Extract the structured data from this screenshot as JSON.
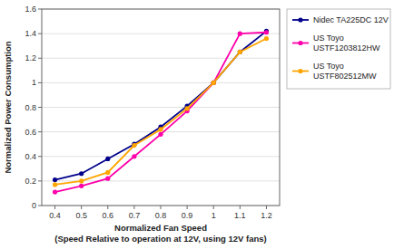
{
  "chart_data": {
    "type": "line",
    "xlabel": "Normalized Fan Speed\n(Speed Relative to operation at 12V, using 12V fans)",
    "ylabel": "Normalized Power Consumption",
    "x": [
      0.4,
      0.5,
      0.6,
      0.7,
      0.8,
      0.9,
      1.0,
      1.1,
      1.2
    ],
    "series": [
      {
        "name": "Nidec TA225DC 12V",
        "color": "#00008B",
        "marker": "circle",
        "values": [
          0.21,
          0.26,
          0.38,
          0.5,
          0.64,
          0.81,
          1.0,
          1.25,
          1.42
        ]
      },
      {
        "name": "US Toyo\nUSTF1203812HW",
        "color": "#FF00AA",
        "marker": "circle",
        "values": [
          0.11,
          0.16,
          0.22,
          0.4,
          0.58,
          0.77,
          1.0,
          1.4,
          1.41
        ]
      },
      {
        "name": "US Toyo\nUSTF802512MW",
        "color": "#FFA500",
        "marker": "circle",
        "values": [
          0.17,
          0.2,
          0.27,
          0.49,
          0.62,
          0.79,
          1.0,
          1.25,
          1.36
        ]
      }
    ],
    "xlim": [
      0.35,
      1.25
    ],
    "ylim": [
      0,
      1.6
    ],
    "xticks": [
      0.4,
      0.5,
      0.6,
      0.7,
      0.8,
      0.9,
      1,
      1.1,
      1.2
    ],
    "yticks": [
      0,
      0.2,
      0.4,
      0.6,
      0.8,
      1,
      1.2,
      1.4,
      1.6
    ],
    "grid": "y",
    "legend": "right"
  }
}
